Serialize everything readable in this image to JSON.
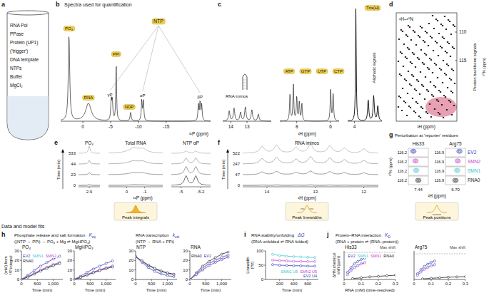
{
  "figure": {
    "panel_letters": [
      "a",
      "b",
      "c",
      "d",
      "e",
      "f",
      "g",
      "h",
      "i",
      "j"
    ],
    "a": {
      "items": [
        "RNA Pol",
        "PPase",
        "Protein (UP1)",
        "('trigger')",
        "DNA template",
        "NTPs",
        "Buffer",
        "MgCl₂"
      ]
    },
    "b": {
      "title": "Spectra used for quantification",
      "peaks": {
        "po4": "PO₄",
        "rna": "RNA",
        "ppi": "PPi",
        "ndp": "NDP",
        "ntp": "NTP",
        "gamma": "γP",
        "alpha": "αP",
        "beta": "βP"
      },
      "ticks": [
        0,
        -5,
        -10,
        -15
      ],
      "axis_label": "³¹P (ppm)"
    },
    "c": {
      "peaks": {
        "iminos": "RNA iminos",
        "atp": "ATP",
        "gtp": "GTP",
        "utp": "UTP",
        "ctp": "CTP",
        "tris": "Tris(H)",
        "aliphatic": "Aliphatic signals"
      },
      "ticks": [
        14,
        13,
        8,
        6,
        4
      ],
      "axis_label": "¹H (ppm)"
    },
    "d": {
      "label": "¹H–¹⁵N",
      "signals": "Protein backbone signals",
      "yticks": [
        110,
        115
      ],
      "y_label": "¹⁵N (ppm)",
      "x_label": "¹H (ppm)"
    },
    "e": {
      "y_label": "Time (min)",
      "times": [
        533,
        44,
        23,
        0
      ],
      "groups": [
        {
          "title": "PO₄",
          "ticks": [
            2.9
          ]
        },
        {
          "title": "Total RNA",
          "ticks": [
            0,
            -1
          ]
        },
        {
          "title": "NTP αP",
          "ticks": [
            -5,
            -5.2
          ]
        }
      ],
      "x_label": "³¹P (ppm)",
      "method": "Peak integrals"
    },
    "f": {
      "title": "RNA iminos",
      "y_label": "Time (min)",
      "times": [
        522,
        247,
        47,
        0
      ],
      "ticks": [
        14,
        13,
        12
      ],
      "x_label": "¹H (ppm)",
      "method": "Peak linewidths"
    },
    "g": {
      "title": "Perturbation at 'reporter' residues",
      "residues": [
        {
          "name": "His33",
          "y_tick": 116.2,
          "x_tick": 7.44
        },
        {
          "name": "Arg75",
          "y_tick": 116.9,
          "x_tick": {
            "value": 6.7,
            "label": "6.70"
          }
        }
      ],
      "rows": [
        {
          "name": "EV2",
          "color": "#2d3cb5"
        },
        {
          "name": "SMN2",
          "color": "#c53fcf"
        },
        {
          "name": "SMN1",
          "color": "#35c4cf"
        },
        {
          "name": "RNA0",
          "color": "#222222"
        }
      ],
      "y_label": "¹⁵N (ppm)",
      "x_label": "¹H (ppm)",
      "method": "Peak positions"
    },
    "bottom_title": "Data and model fits",
    "groups": [
      {
        "title": "Phosphate release and salt formation",
        "scheme": "((NTP → PPi) → PO₄ + Mg ⇌ MgHPO₄)",
        "constant": {
          "symbol": "K",
          "subscript": "eq"
        }
      },
      {
        "title": "RNA transcription",
        "scheme": "(NTP → RNA + PPi)",
        "constant": {
          "symbol": "k",
          "subscript": "cat"
        }
      },
      {
        "title": "RNA stability/unfolding",
        "scheme": "(RNA unfolded ⇌ RNA folded)",
        "constant": {
          "symbol": "ΔG"
        }
      },
      {
        "title": "Protein–RNA interaction",
        "scheme": "(RNA + protein ⇌ (RNA–protein))",
        "constant": {
          "symbol": "K",
          "subscript": "D"
        }
      }
    ]
  },
  "chart_data": [
    {
      "type": "line",
      "marker": "circle",
      "title": "PO₄",
      "x_label": "Time (min)",
      "y_label": "(mM) from ³¹P integral",
      "xlim": [
        0,
        1300
      ],
      "xticks": [
        0,
        500,
        {
          "value": 1000,
          "label": "1,000"
        }
      ],
      "ylim": [
        0,
        30
      ],
      "yticks": [
        0,
        10,
        20,
        30
      ],
      "legend": "upper left",
      "series": [
        {
          "name": "EV2",
          "color": "#2d3cb5",
          "x": [
            0,
            200,
            400,
            600,
            800,
            1000,
            1200
          ],
          "values": [
            0,
            4.5,
            9.5,
            14,
            18,
            21.5,
            24.5
          ]
        },
        {
          "name": "SMN1",
          "color": "#35c4cf",
          "x": [
            0,
            200,
            400,
            600,
            800,
            1000,
            1200
          ],
          "values": [
            0,
            2.8,
            6.2,
            9.5,
            12.5,
            15.3,
            17.5
          ]
        },
        {
          "name": "SMN2",
          "color": "#c53fcf",
          "x": [
            0,
            200,
            400,
            600,
            800,
            1000,
            1200
          ],
          "values": [
            0,
            3,
            6.6,
            10,
            13,
            15.8,
            18
          ]
        },
        {
          "name": "RNA0",
          "color": "#222222",
          "x": [
            0,
            200,
            400,
            600,
            800,
            1000,
            1200
          ],
          "values": [
            0,
            2.4,
            5.6,
            8.8,
            11.8,
            14.5,
            16.8
          ]
        }
      ]
    },
    {
      "type": "line",
      "marker": "circle",
      "title": "MgHPO₄",
      "x_label": "Time (min)",
      "xlim": [
        0,
        1300
      ],
      "xticks": [
        0,
        500,
        {
          "value": 1000,
          "label": "1,000"
        }
      ],
      "ylim": [
        0,
        30
      ],
      "yticks": [
        0,
        10,
        20,
        30
      ],
      "series": [
        {
          "color": "#2d3cb5",
          "x": [
            0,
            200,
            400,
            600,
            800,
            1000,
            1200
          ],
          "values": [
            0,
            3.5,
            7.5,
            11,
            14,
            17,
            19.5
          ]
        },
        {
          "color": "#35c4cf",
          "x": [
            0,
            200,
            400,
            600,
            800,
            1000,
            1200
          ],
          "values": [
            0,
            2.2,
            5,
            7.5,
            10,
            12,
            14
          ]
        },
        {
          "color": "#c53fcf",
          "x": [
            0,
            200,
            400,
            600,
            800,
            1000,
            1200
          ],
          "values": [
            0,
            2.4,
            5.2,
            7.8,
            10.3,
            12.4,
            14.3
          ]
        },
        {
          "color": "#222222",
          "x": [
            0,
            200,
            400,
            600,
            800,
            1000,
            1200
          ],
          "values": [
            0,
            2,
            4.6,
            7,
            9.3,
            11.3,
            13.2
          ]
        }
      ]
    },
    {
      "type": "line",
      "marker": "circle",
      "title": "NTP",
      "x_label": "Time (min)",
      "xlim": [
        0,
        1300
      ],
      "xticks": [
        0,
        500,
        {
          "value": 1000,
          "label": "1,000"
        }
      ],
      "ylim": [
        0,
        30
      ],
      "yticks": [
        0,
        10,
        20,
        30
      ],
      "series": [
        {
          "color": "#2d3cb5",
          "x": [
            0,
            200,
            400,
            600,
            800,
            1000,
            1200
          ],
          "values": [
            24,
            18,
            12.5,
            8.5,
            5.8,
            4,
            3
          ]
        },
        {
          "color": "#35c4cf",
          "x": [
            0,
            200,
            400,
            600,
            800,
            1000,
            1200
          ],
          "values": [
            24,
            19,
            14.5,
            11,
            8.3,
            6.4,
            5
          ]
        },
        {
          "color": "#c53fcf",
          "x": [
            0,
            200,
            400,
            600,
            800,
            1000,
            1200
          ],
          "values": [
            24,
            19.2,
            14.8,
            11.3,
            8.6,
            6.6,
            5.2
          ]
        },
        {
          "color": "#222222",
          "x": [
            0,
            200,
            400,
            600,
            800,
            1000,
            1200
          ],
          "values": [
            24,
            19.5,
            15.2,
            11.8,
            9,
            7,
            5.5
          ]
        }
      ]
    },
    {
      "type": "line",
      "marker": "circle",
      "title": "RNA",
      "x_label": "Time (min)",
      "xlim": [
        0,
        1300
      ],
      "xticks": [
        0,
        500,
        {
          "value": 1000,
          "label": "1,000"
        }
      ],
      "ylim": [
        0,
        30
      ],
      "yticks": [
        0,
        10,
        20,
        30
      ],
      "legend": "upper left",
      "series": [
        {
          "name": "RNA0",
          "color": "#222222",
          "x": [
            0,
            200,
            400,
            600,
            800,
            1000,
            1200
          ],
          "values": [
            0,
            7,
            14,
            19,
            23,
            26.5,
            29
          ]
        },
        {
          "color": "#35c4cf",
          "x": [
            0,
            200,
            400,
            600,
            800,
            1000,
            1200
          ],
          "values": [
            0,
            6,
            12,
            17,
            20.5,
            23.5,
            26
          ]
        },
        {
          "color": "#c53fcf",
          "x": [
            0,
            200,
            400,
            600,
            800,
            1000,
            1200
          ],
          "values": [
            0,
            5.8,
            11.7,
            16.6,
            20,
            23,
            25.5
          ]
        },
        {
          "name": "EV2",
          "color": "#2d3cb5",
          "x": [
            0,
            200,
            400,
            600,
            800,
            1000,
            1200
          ],
          "values": [
            0,
            5,
            10,
            14.5,
            18,
            21,
            23.5
          ]
        }
      ]
    },
    {
      "type": "line",
      "marker": "circle",
      "x_label": "Time (min)",
      "y_label": "Linewidth (Hz)",
      "xlim": [
        0,
        750
      ],
      "xticks": [
        200,
        400,
        600
      ],
      "ylim": [
        0,
        100
      ],
      "yticks": [
        0,
        50,
        100
      ],
      "legend": "lower right",
      "series": [
        {
          "name": "SMN1 U5",
          "color": "#35c4cf",
          "x": [
            100,
            200,
            300,
            400,
            500,
            600,
            700
          ],
          "values": [
            88,
            84,
            82,
            80,
            79,
            78,
            77
          ]
        },
        {
          "name": "SMN2 U5",
          "color": "#c53fcf",
          "x": [
            100,
            200,
            300,
            400,
            500,
            600,
            700
          ],
          "values": [
            68,
            66,
            65,
            64,
            64,
            63,
            63
          ]
        },
        {
          "name": "EV2 U4",
          "color": "#2d3cb5",
          "x": [
            100,
            200,
            300,
            400,
            500,
            600,
            700
          ],
          "values": [
            52,
            50,
            49,
            48,
            48,
            47,
            47
          ]
        }
      ]
    },
    {
      "type": "line",
      "marker": "circle",
      "title": "His33",
      "max_shift": 0.095,
      "max_shift_label": "Max shift",
      "x_label": "RNA (mM) (time-resolved)",
      "y_label": "ΔHN chemical shift (ppm)",
      "xlim": [
        0,
        0.3
      ],
      "xticks": [
        0,
        0.1,
        0.2,
        0.3
      ],
      "ylim": [
        0,
        0.1
      ],
      "tick_labels": "x",
      "legend": "upper right",
      "series": [
        {
          "name": "EV2",
          "color": "#2d3cb5",
          "x": [
            0.02,
            0.04,
            0.06,
            0.08,
            0.1,
            0.12
          ],
          "values": [
            0.025,
            0.042,
            0.055,
            0.063,
            0.07,
            0.075
          ]
        },
        {
          "name": "SMN1",
          "color": "#35c4cf",
          "x": [
            0.02,
            0.04,
            0.06,
            0.08,
            0.1,
            0.12
          ],
          "values": [
            0.018,
            0.032,
            0.043,
            0.05,
            0.056,
            0.06
          ]
        },
        {
          "name": "SMN2",
          "color": "#c53fcf",
          "x": [
            0.02,
            0.04,
            0.06,
            0.08,
            0.1,
            0.12
          ],
          "values": [
            0.016,
            0.03,
            0.041,
            0.048,
            0.054,
            0.058
          ]
        },
        {
          "name": "RNA0",
          "color": "#222222",
          "x": [
            0.05,
            0.1,
            0.15,
            0.2,
            0.25,
            0.3
          ],
          "values": [
            0.003,
            0.006,
            0.009,
            0.011,
            0.013,
            0.015
          ]
        }
      ]
    },
    {
      "type": "line",
      "marker": "circle",
      "title": "Arg75",
      "max_shift": 0.09,
      "max_shift_label": "Max shift",
      "xlim": [
        0,
        0.3
      ],
      "xticks": [
        0,
        0.1,
        0.2,
        0.3
      ],
      "ylim": [
        0,
        0.1
      ],
      "tick_labels": "x",
      "series": [
        {
          "color": "#2d3cb5",
          "x": [
            0.02,
            0.04,
            0.06,
            0.08,
            0.1,
            0.12
          ],
          "values": [
            0.02,
            0.035,
            0.046,
            0.054,
            0.06,
            0.065
          ]
        },
        {
          "color": "#35c4cf",
          "x": [
            0.02,
            0.04,
            0.06,
            0.08,
            0.1,
            0.12
          ],
          "values": [
            0.015,
            0.028,
            0.037,
            0.044,
            0.049,
            0.053
          ]
        },
        {
          "color": "#c53fcf",
          "x": [
            0.02,
            0.04,
            0.06,
            0.08,
            0.1,
            0.12
          ],
          "values": [
            0.014,
            0.026,
            0.035,
            0.042,
            0.047,
            0.051
          ]
        },
        {
          "color": "#222222",
          "x": [
            0.05,
            0.1,
            0.15,
            0.2,
            0.25,
            0.3
          ],
          "values": [
            0.002,
            0.004,
            0.006,
            0.008,
            0.009,
            0.01
          ]
        }
      ]
    }
  ]
}
